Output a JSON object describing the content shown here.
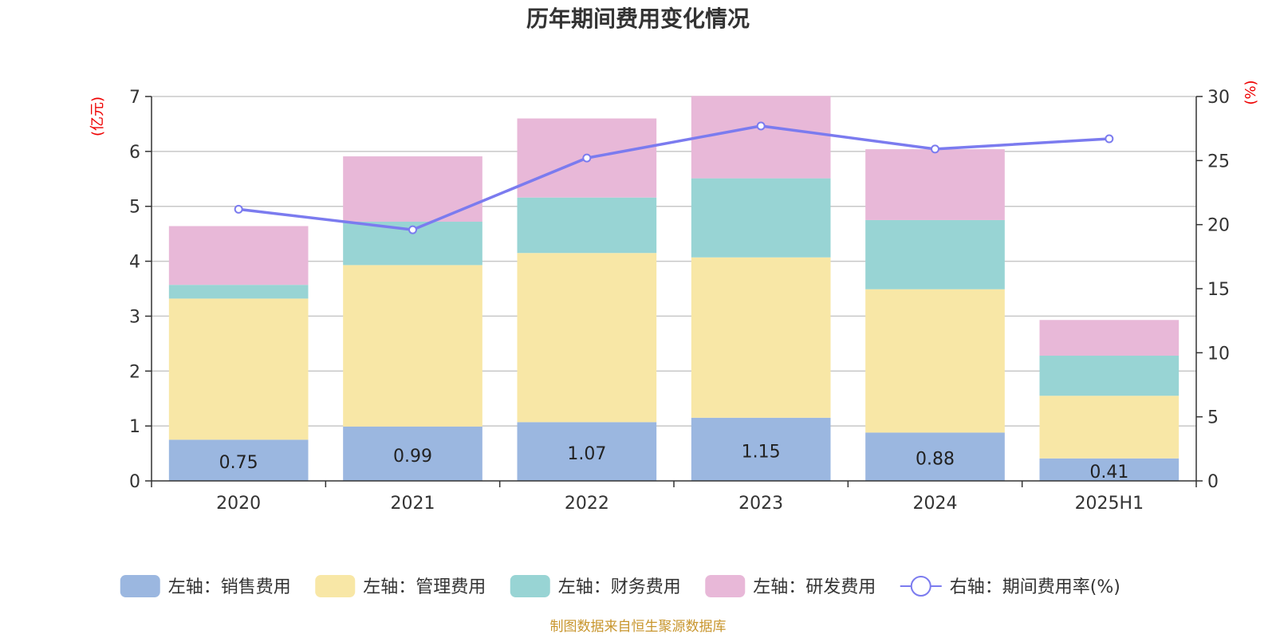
{
  "chart_data": {
    "type": "bar",
    "title": "历年期间费用变化情况",
    "categories": [
      "2020",
      "2021",
      "2022",
      "2023",
      "2024",
      "2025H1"
    ],
    "left_axis": {
      "unit": "(亿元)",
      "ylim": [
        0,
        7
      ],
      "ticks": [
        "0",
        "1",
        "2",
        "3",
        "4",
        "5",
        "6",
        "7"
      ]
    },
    "right_axis": {
      "unit": "(%)",
      "ylim": [
        0,
        30
      ],
      "ticks": [
        "0",
        "5",
        "10",
        "15",
        "20",
        "25",
        "30"
      ]
    },
    "grid": true,
    "legend_position": "bottom",
    "series": [
      {
        "name": "左轴：销售费用",
        "kind": "bar",
        "stack": "left",
        "color": "#9bb7e0",
        "values": [
          0.75,
          0.99,
          1.07,
          1.15,
          0.88,
          0.41
        ],
        "labels": [
          "0.75",
          "0.99",
          "1.07",
          "1.15",
          "0.88",
          "0.41"
        ]
      },
      {
        "name": "左轴：管理费用",
        "kind": "bar",
        "stack": "left",
        "color": "#f8e7a6",
        "values": [
          2.57,
          2.94,
          3.08,
          2.92,
          2.61,
          1.14
        ]
      },
      {
        "name": "左轴：财务费用",
        "kind": "bar",
        "stack": "left",
        "color": "#98d4d4",
        "values": [
          0.25,
          0.79,
          1.01,
          1.44,
          1.26,
          0.73
        ]
      },
      {
        "name": "左轴：研发费用",
        "kind": "bar",
        "stack": "left",
        "color": "#e8b8d8",
        "values": [
          1.07,
          1.19,
          1.44,
          1.5,
          1.29,
          0.65
        ]
      },
      {
        "name": "右轴：期间费用率(%)",
        "kind": "line",
        "axis": "right",
        "color": "#7b7bef",
        "values": [
          21.2,
          19.6,
          25.2,
          27.7,
          25.9,
          26.7
        ]
      }
    ],
    "source": "制图数据来自恒生聚源数据库"
  }
}
